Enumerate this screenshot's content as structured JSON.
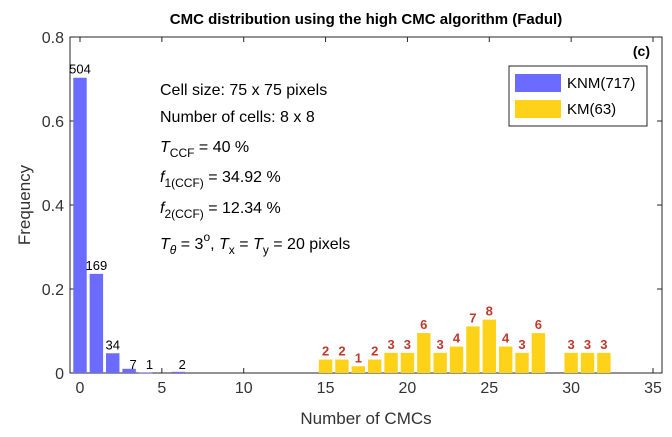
{
  "chart_data": {
    "type": "bar",
    "title": "CMC distribution using the high CMC algorithm (Fadul)",
    "panel_label": "(c)",
    "xlabel": "Number of CMCs",
    "ylabel": "Frequency",
    "xlim": [
      0,
      35
    ],
    "ylim": [
      0,
      0.8
    ],
    "xticks": [
      "0",
      "5",
      "10",
      "15",
      "20",
      "25",
      "30",
      "35"
    ],
    "yticks": [
      "0",
      "0.2",
      "0.4",
      "0.6",
      "0.8"
    ],
    "legend_position": "top-right",
    "colors": {
      "KNM": "#6b6bff",
      "KM": "#ffd21a"
    },
    "series": [
      {
        "name": "KNM(717)",
        "key": "KNM",
        "x": [
          0,
          1,
          2,
          3,
          4,
          6
        ],
        "values": [
          0.703,
          0.236,
          0.047,
          0.01,
          0.0014,
          0.0028
        ],
        "labels": [
          "504",
          "169",
          "34",
          "7",
          "1",
          "2"
        ]
      },
      {
        "name": "KM(63)",
        "key": "KM",
        "x": [
          15,
          16,
          17,
          18,
          19,
          20,
          21,
          22,
          23,
          24,
          25,
          26,
          27,
          28,
          30,
          31,
          32
        ],
        "values": [
          0.032,
          0.032,
          0.016,
          0.032,
          0.048,
          0.048,
          0.095,
          0.048,
          0.063,
          0.111,
          0.127,
          0.063,
          0.048,
          0.095,
          0.048,
          0.048,
          0.048
        ],
        "labels": [
          "2",
          "2",
          "1",
          "2",
          "3",
          "3",
          "6",
          "3",
          "4",
          "7",
          "8",
          "4",
          "3",
          "6",
          "3",
          "3",
          "3"
        ]
      }
    ]
  },
  "annotations": {
    "cell_size": "Cell size: 75 x 75 pixels",
    "num_cells": "Number of cells: 8 x 8",
    "tccf_main": "T",
    "tccf_sub": "CCF",
    "tccf_value": " = 40 %",
    "f1_main": "f",
    "f1_sub": "1(CCF)",
    "f1_value": " = 34.92 %",
    "f2_main": "f",
    "f2_sub": "2(CCF)",
    "f2_value": " = 12.34 %",
    "theta_T": "T",
    "theta_sub": "θ",
    "theta_eq": " = 3",
    "theta_sup": "o",
    "theta_sep": ", ",
    "tx_T": "T",
    "tx_sub": "x",
    "tx_eq": " = ",
    "ty_T": "T",
    "ty_sub": "y",
    "ty_value": " = 20 pixels"
  }
}
